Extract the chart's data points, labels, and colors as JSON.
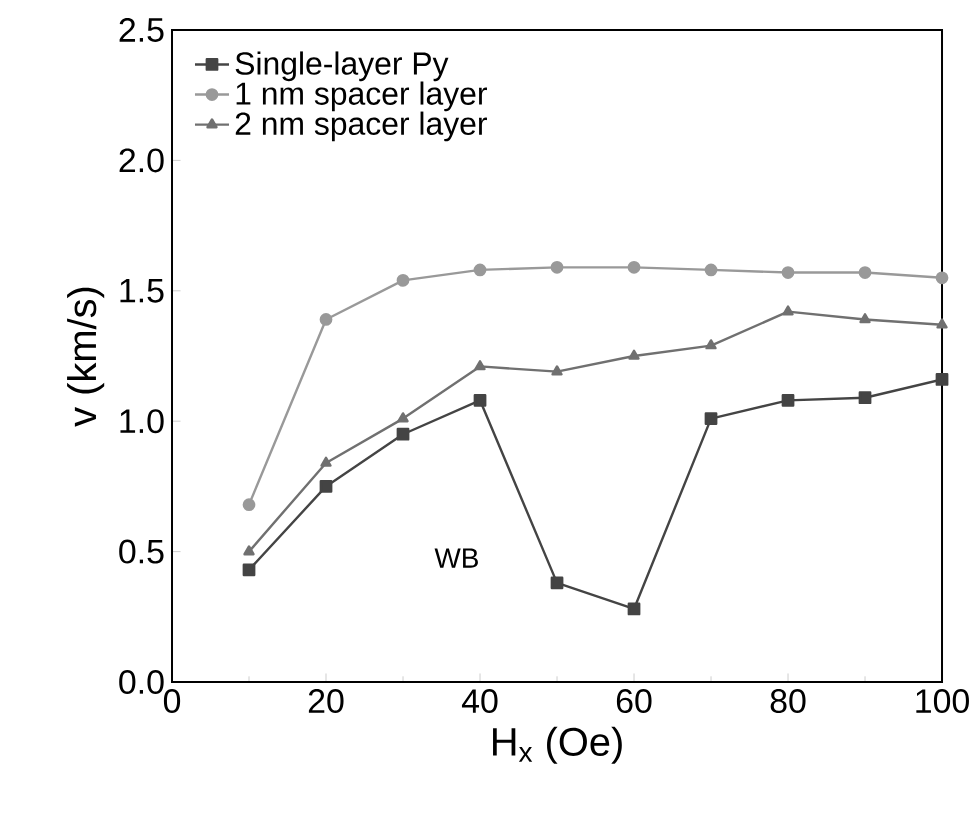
{
  "chart_data": {
    "type": "line",
    "xlabel": "H$_{x}$ (Oe)",
    "ylabel": "v (km/s)",
    "x": [
      10,
      20,
      30,
      40,
      50,
      60,
      70,
      80,
      90,
      100
    ],
    "series": [
      {
        "name": "Single-layer Py",
        "color": "#444444",
        "marker": "square",
        "values": [
          0.43,
          0.75,
          0.95,
          1.08,
          0.38,
          0.28,
          1.01,
          1.08,
          1.09,
          1.16
        ]
      },
      {
        "name": "1 nm spacer layer",
        "color": "#999999",
        "marker": "circle",
        "values": [
          0.68,
          1.39,
          1.54,
          1.58,
          1.59,
          1.59,
          1.58,
          1.57,
          1.57,
          1.55
        ]
      },
      {
        "name": "2 nm spacer layer",
        "color": "#707070",
        "marker": "triangle",
        "values": [
          0.5,
          0.84,
          1.01,
          1.21,
          1.19,
          1.25,
          1.29,
          1.42,
          1.39,
          1.37
        ]
      }
    ],
    "annotations": [
      "WB"
    ],
    "xlim": [
      0,
      100
    ],
    "ylim": [
      0,
      2.5
    ],
    "xticks": [
      0,
      20,
      40,
      60,
      80,
      100
    ],
    "yticks": [
      {
        "value": 0,
        "label": "0.0"
      },
      0.5,
      {
        "value": 1,
        "label": "1.0"
      },
      1.5,
      {
        "value": 2,
        "label": "2.0"
      },
      2.5
    ],
    "legend": "top left",
    "grid": false,
    "line_style": "solid"
  }
}
